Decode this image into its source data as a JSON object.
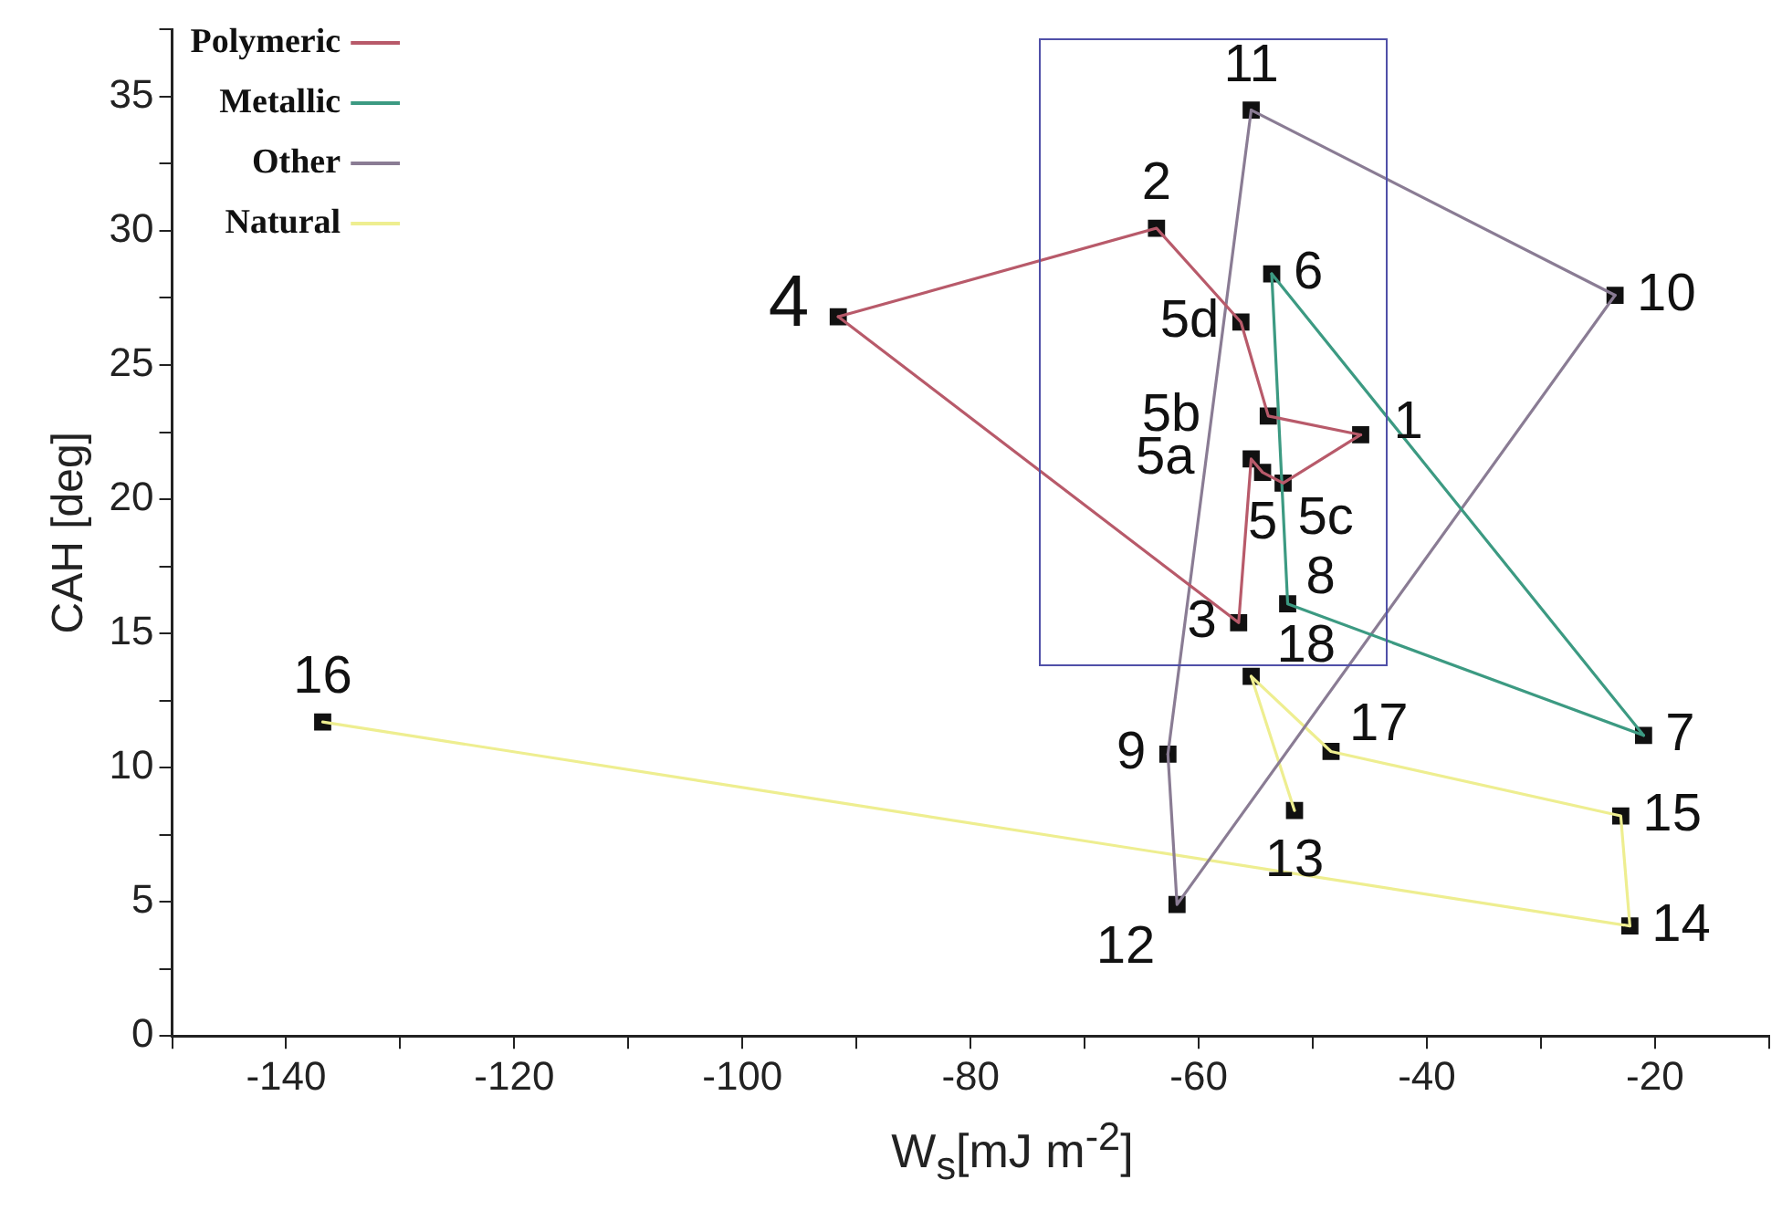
{
  "chart_data": {
    "type": "scatter",
    "xlabel": "W$_{s}$[mJ m$^{-2}$]",
    "ylabel": "CAH [deg]",
    "xlim": [
      -150,
      -10
    ],
    "ylim": [
      0,
      37.5
    ],
    "xticks": [
      {
        "value": -150,
        "label": null
      },
      -140,
      {
        "value": -130,
        "label": null
      },
      -120,
      {
        "value": -110,
        "label": null
      },
      -100,
      {
        "value": -90,
        "label": null
      },
      -80,
      {
        "value": -70,
        "label": null
      },
      -60,
      {
        "value": -50,
        "label": null
      },
      -40,
      {
        "value": -30,
        "label": null
      },
      -20,
      {
        "value": -10,
        "label": null
      }
    ],
    "yticks": [
      0,
      {
        "value": 2.5,
        "label": null
      },
      5,
      {
        "value": 7.5,
        "label": null
      },
      10,
      {
        "value": 12.5,
        "label": null
      },
      15,
      {
        "value": 17.5,
        "label": null
      },
      20,
      {
        "value": 22.5,
        "label": null
      },
      25,
      {
        "value": 27.5,
        "label": null
      },
      30,
      {
        "value": 32.5,
        "label": null
      },
      35,
      {
        "value": 37.5,
        "label": null
      }
    ],
    "grid": false,
    "legend": "top left",
    "marker": "square",
    "line_style": "solid",
    "series": [
      {
        "name": "Polymeric",
        "type": "line",
        "marker": "none",
        "color": "#b85a6a",
        "x": [
          -91.6,
          -63.7,
          -56.3,
          -53.9,
          -45.8
        ],
        "values": [
          26.8,
          30.1,
          26.6,
          23.1,
          22.4
        ]
      },
      {
        "type": "line",
        "marker": "none",
        "color": "#b85a6a",
        "x": [
          -91.6,
          -56.5,
          -55.4,
          -54.4,
          -52.6,
          -45.8
        ],
        "values": [
          26.8,
          15.4,
          21.5,
          21.0,
          20.6,
          22.4
        ]
      },
      {
        "name": "Metallic",
        "type": "line",
        "marker": "none",
        "color": "#3c9a82",
        "x": [
          -53.6,
          -21.0
        ],
        "values": [
          28.4,
          11.2
        ]
      },
      {
        "type": "line",
        "marker": "none",
        "color": "#3c9a82",
        "x": [
          -53.6,
          -52.2,
          -21.0
        ],
        "values": [
          28.4,
          16.1,
          11.2
        ]
      },
      {
        "name": "Other",
        "type": "line",
        "marker": "none",
        "color": "#8a7c94",
        "x": [
          -55.4,
          -23.5
        ],
        "values": [
          34.5,
          27.6
        ]
      },
      {
        "type": "line",
        "marker": "none",
        "color": "#8a7c94",
        "x": [
          -62.7,
          -61.9,
          -23.5
        ],
        "values": [
          10.5,
          4.9,
          27.6
        ]
      },
      {
        "type": "line",
        "marker": "none",
        "color": "#8a7c94",
        "x": [
          -62.7,
          -55.4
        ],
        "values": [
          10.5,
          34.5
        ]
      },
      {
        "name": "Natural",
        "type": "line",
        "marker": "none",
        "color": "#eeee90",
        "x": [
          -55.4,
          -51.6
        ],
        "values": [
          13.4,
          8.4
        ]
      },
      {
        "type": "line",
        "marker": "none",
        "color": "#eeee90",
        "x": [
          -55.4,
          -48.4,
          -23.0,
          -22.2
        ],
        "values": [
          13.4,
          10.6,
          8.2,
          4.1
        ]
      },
      {
        "type": "line",
        "marker": "none",
        "color": "#eeee90",
        "x": [
          -136.8,
          -22.2
        ],
        "values": [
          11.7,
          4.1
        ]
      },
      {
        "type": "scatter",
        "color": "#111111",
        "x": [
          -45.8,
          -63.7,
          -56.5,
          -91.6,
          -54.4,
          -55.4,
          -53.9,
          -52.6,
          -56.3,
          -53.6,
          -21.0,
          -52.2,
          -62.7,
          -23.5,
          -55.4,
          -61.9,
          -51.6,
          -22.2,
          -23.0,
          -136.8,
          -48.4,
          -55.4
        ],
        "values": [
          22.4,
          30.1,
          15.4,
          26.8,
          21.0,
          21.5,
          23.1,
          20.6,
          26.6,
          28.4,
          11.2,
          16.1,
          10.5,
          27.6,
          34.5,
          4.9,
          8.4,
          4.1,
          8.2,
          11.7,
          10.6,
          13.4
        ]
      }
    ],
    "annotations": [
      {
        "text": "1",
        "x": -45.8,
        "y": 22.4
      },
      {
        "text": "2",
        "x": -63.7,
        "y": 30.1
      },
      {
        "text": "3",
        "x": -56.5,
        "y": 15.4
      },
      {
        "text": "4",
        "x": -91.6,
        "y": 26.8
      },
      {
        "text": "5",
        "x": -54.4,
        "y": 21.0
      },
      {
        "text": "5a",
        "x": -55.4,
        "y": 21.5
      },
      {
        "text": "5b",
        "x": -53.9,
        "y": 23.1
      },
      {
        "text": "5c",
        "x": -52.6,
        "y": 20.6
      },
      {
        "text": "5d",
        "x": -56.3,
        "y": 26.6
      },
      {
        "text": "6",
        "x": -53.6,
        "y": 28.4
      },
      {
        "text": "7",
        "x": -21.0,
        "y": 11.2
      },
      {
        "text": "8",
        "x": -52.2,
        "y": 16.1
      },
      {
        "text": "9",
        "x": -62.7,
        "y": 10.5
      },
      {
        "text": "10",
        "x": -23.5,
        "y": 27.6
      },
      {
        "text": "11",
        "x": -55.4,
        "y": 34.5
      },
      {
        "text": "12",
        "x": -61.9,
        "y": 4.9
      },
      {
        "text": "13",
        "x": -51.6,
        "y": 8.4
      },
      {
        "text": "14",
        "x": -22.2,
        "y": 4.1
      },
      {
        "text": "15",
        "x": -23.0,
        "y": 8.2
      },
      {
        "text": "16",
        "x": -136.8,
        "y": 11.7
      },
      {
        "text": "17",
        "x": -48.4,
        "y": 10.6
      },
      {
        "text": "18",
        "x": -55.4,
        "y": 13.4
      }
    ]
  }
}
